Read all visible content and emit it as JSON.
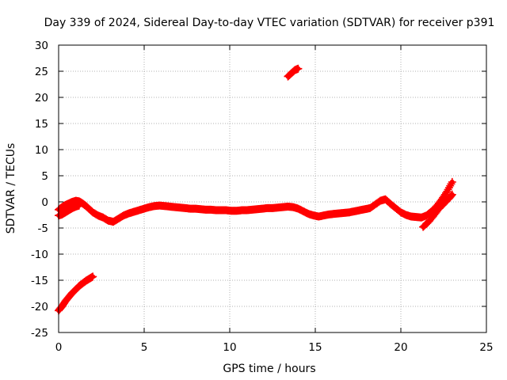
{
  "chart_data": {
    "type": "scatter",
    "title": "Day 339 of 2024, Sidereal Day-to-day VTEC variation (SDTVAR) for receiver p391",
    "xlabel": "GPS time / hours",
    "ylabel": "SDTVAR / TECUs",
    "xlim": [
      0,
      25
    ],
    "ylim": [
      -25,
      30
    ],
    "xticks": [
      0,
      5,
      10,
      15,
      20,
      25
    ],
    "yticks": [
      -25,
      -20,
      -15,
      -10,
      -5,
      0,
      5,
      10,
      15,
      20,
      25,
      30
    ],
    "grid": true,
    "marker": "plus",
    "color": "#ff0000",
    "series": [
      {
        "name": "segment-low-start",
        "x": [
          0.0,
          0.2,
          0.4,
          0.6,
          0.8,
          1.0,
          1.2,
          1.4,
          1.6,
          1.8,
          2.0
        ],
        "y": [
          -20.8,
          -20.0,
          -19.0,
          -18.2,
          -17.4,
          -16.8,
          -16.1,
          -15.6,
          -15.1,
          -14.7,
          -14.3
        ]
      },
      {
        "name": "segment-main",
        "x": [
          0.0,
          0.2,
          0.4,
          0.6,
          0.8,
          1.0,
          1.2,
          1.4,
          1.6,
          1.8,
          2.0,
          2.3,
          2.6,
          2.9,
          3.2,
          3.5,
          3.8,
          4.1,
          4.4,
          4.7,
          5.0,
          5.3,
          5.6,
          5.9,
          6.2,
          6.5,
          6.8,
          7.1,
          7.4,
          7.7,
          8.0,
          8.3,
          8.6,
          8.9,
          9.2,
          9.5,
          9.8,
          10.1,
          10.4,
          10.7,
          11.0,
          11.3,
          11.6,
          11.9,
          12.2,
          12.5,
          12.8,
          13.1,
          13.4,
          13.7,
          14.0,
          14.3,
          14.6,
          14.9,
          15.2,
          15.5,
          15.8,
          16.1,
          16.4,
          16.7,
          17.0,
          17.3,
          17.6,
          17.9,
          18.2,
          18.5,
          18.8,
          19.1,
          19.4,
          19.7,
          20.0,
          20.3,
          20.6,
          20.9,
          21.2,
          21.5,
          21.8,
          22.1,
          22.4,
          22.7,
          23.0
        ],
        "y": [
          -1.5,
          -1.0,
          -0.6,
          -0.3,
          0.0,
          0.2,
          0.1,
          -0.3,
          -0.8,
          -1.4,
          -2.0,
          -2.6,
          -3.0,
          -3.6,
          -3.8,
          -3.2,
          -2.6,
          -2.2,
          -1.9,
          -1.6,
          -1.3,
          -1.0,
          -0.8,
          -0.7,
          -0.8,
          -0.9,
          -1.0,
          -1.1,
          -1.2,
          -1.3,
          -1.3,
          -1.4,
          -1.5,
          -1.5,
          -1.6,
          -1.6,
          -1.6,
          -1.7,
          -1.7,
          -1.6,
          -1.6,
          -1.5,
          -1.4,
          -1.3,
          -1.2,
          -1.2,
          -1.1,
          -1.0,
          -0.9,
          -1.0,
          -1.3,
          -1.8,
          -2.3,
          -2.6,
          -2.8,
          -2.6,
          -2.4,
          -2.3,
          -2.2,
          -2.1,
          -2.0,
          -1.8,
          -1.6,
          -1.4,
          -1.2,
          -0.5,
          0.2,
          0.5,
          -0.4,
          -1.2,
          -2.0,
          -2.5,
          -2.8,
          -2.9,
          -3.0,
          -2.6,
          -1.8,
          -0.8,
          0.5,
          2.0,
          3.8
        ]
      },
      {
        "name": "segment-upper-loop",
        "x": [
          0.0,
          0.2,
          0.4,
          0.6,
          0.8,
          1.0,
          1.2
        ],
        "y": [
          -2.6,
          -2.4,
          -2.0,
          -1.6,
          -1.2,
          -0.9,
          -0.7
        ]
      },
      {
        "name": "segment-high",
        "x": [
          13.4,
          13.6,
          13.8,
          14.0
        ],
        "y": [
          24.0,
          24.6,
          25.2,
          25.5
        ]
      },
      {
        "name": "segment-late-branch",
        "x": [
          21.3,
          21.6,
          21.9,
          22.2,
          22.5,
          22.8,
          23.0
        ],
        "y": [
          -4.8,
          -3.9,
          -2.7,
          -1.4,
          -0.4,
          0.6,
          1.4
        ]
      }
    ]
  }
}
